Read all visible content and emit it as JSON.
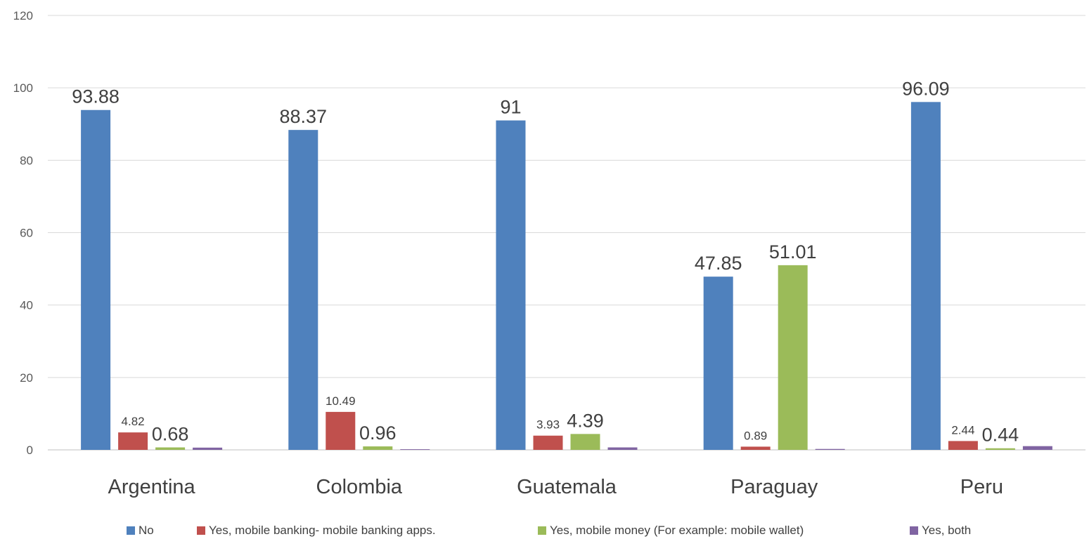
{
  "chart_data": {
    "type": "bar",
    "categories": [
      "Argentina",
      "Colombia",
      "Guatemala",
      "Paraguay",
      "Peru"
    ],
    "series": [
      {
        "name": "No",
        "color": "#4F81BD",
        "values": [
          93.88,
          88.37,
          91,
          47.85,
          96.09
        ],
        "labels": [
          "93.88",
          "88.37",
          "91",
          "47.85",
          "96.09"
        ]
      },
      {
        "name": "Yes, mobile banking- mobile banking apps.",
        "color": "#C0504D",
        "values": [
          4.82,
          10.49,
          3.93,
          0.89,
          2.44
        ],
        "labels": [
          "4.82",
          "10.49",
          "3.93",
          "0.89",
          "2.44"
        ]
      },
      {
        "name": "Yes, mobile money (For example: mobile wallet)",
        "color": "#9BBB59",
        "values": [
          0.68,
          0.96,
          4.39,
          51.01,
          0.44
        ],
        "labels": [
          "0.68",
          "0.96",
          "4.39",
          "51.01",
          "0.44"
        ]
      },
      {
        "name": "Yes, both",
        "color": "#8064A2",
        "values": [
          0.62,
          0.18,
          0.68,
          0.25,
          1.03
        ],
        "labels": [
          "",
          "",
          "",
          "",
          ""
        ]
      }
    ],
    "y_ticks": [
      "0",
      "20",
      "40",
      "60",
      "80",
      "100",
      "120"
    ],
    "ylim": [
      0,
      120
    ],
    "grid": true,
    "legend_position": "bottom"
  }
}
